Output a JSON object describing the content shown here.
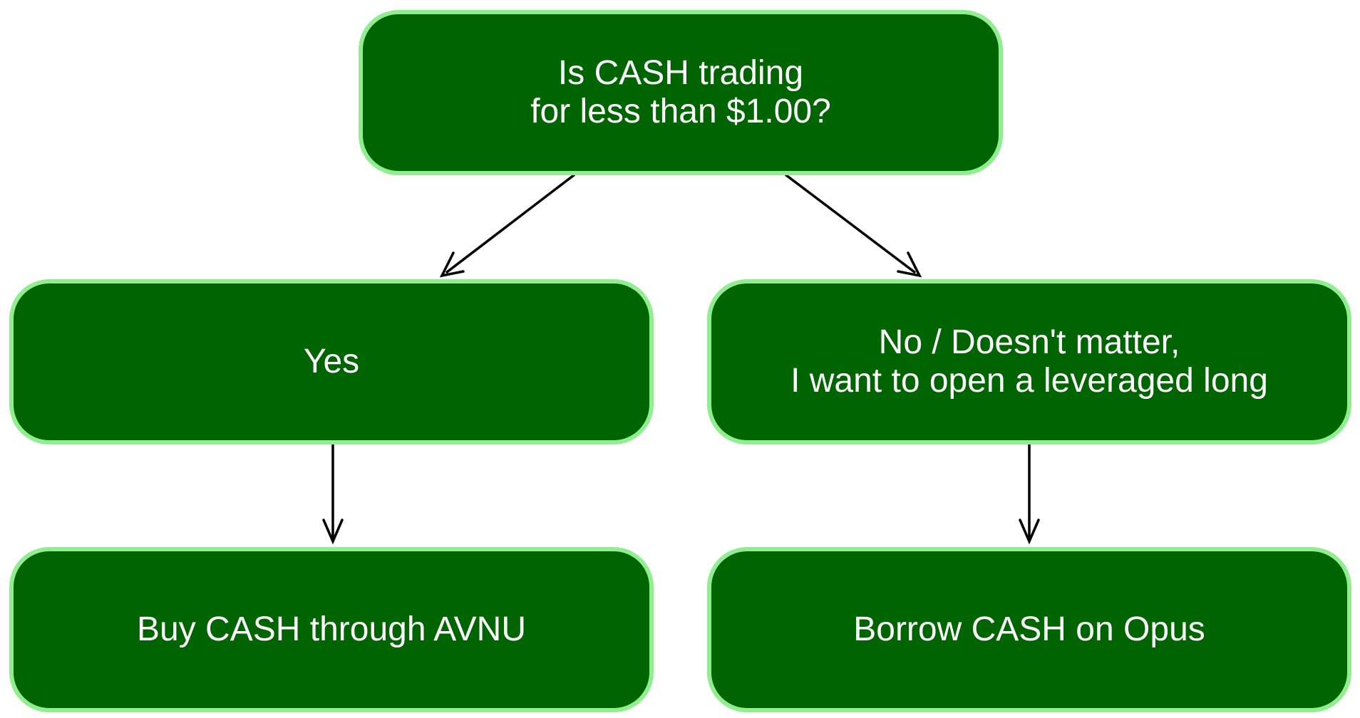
{
  "colors": {
    "node_fill": "#006400",
    "node_border": "#90ee90",
    "node_text": "#ffffff",
    "edge": "#000000",
    "background": "#ffffff"
  },
  "nodes": {
    "question": {
      "label": "Is CASH trading\nfor less than $1.00?"
    },
    "yes": {
      "label": "Yes"
    },
    "no": {
      "label": "No / Doesn't matter,\nI want to open a leveraged long"
    },
    "buy": {
      "label": "Buy CASH through AVNU"
    },
    "borrow": {
      "label": "Borrow CASH on Opus"
    }
  },
  "edges": [
    {
      "from": "question",
      "to": "yes"
    },
    {
      "from": "question",
      "to": "no"
    },
    {
      "from": "yes",
      "to": "buy"
    },
    {
      "from": "no",
      "to": "borrow"
    }
  ]
}
